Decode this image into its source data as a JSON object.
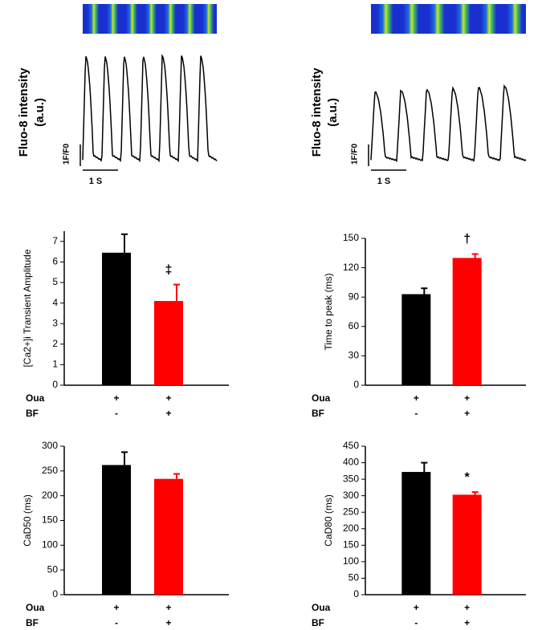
{
  "traces": [
    {
      "ylabel": [
        "Fluo-8 intensity",
        "(a.u.)"
      ],
      "scale_y": "1F/F0",
      "scale_x": "1 S"
    },
    {
      "ylabel": [
        "Fluo-8 intensity",
        "(a.u.)"
      ],
      "scale_y": "1F/F0",
      "scale_x": "1 S"
    }
  ],
  "chart_data": [
    {
      "type": "bar",
      "ylabel": "[Ca2+]i Transient Amplitude",
      "x_rows": [
        {
          "label": "Oua",
          "values": [
            "+",
            "+"
          ]
        },
        {
          "label": "BF",
          "values": [
            "-",
            "+"
          ]
        }
      ],
      "values": [
        6.45,
        4.1
      ],
      "errors": [
        0.9,
        0.8
      ],
      "colors": [
        "#000000",
        "#ff0000"
      ],
      "annotations": [
        null,
        "‡"
      ],
      "ylim": [
        0,
        7.5
      ],
      "yticks": [
        0,
        1,
        2,
        3,
        4,
        5,
        6,
        7
      ]
    },
    {
      "type": "bar",
      "ylabel": "Time to peak (ms)",
      "x_rows": [
        {
          "label": "Oua",
          "values": [
            "+",
            "+"
          ]
        },
        {
          "label": "BF",
          "values": [
            "-",
            "+"
          ]
        }
      ],
      "values": [
        93,
        130
      ],
      "errors": [
        6,
        4
      ],
      "colors": [
        "#000000",
        "#ff0000"
      ],
      "annotations": [
        null,
        "†"
      ],
      "ylim": [
        0,
        150
      ],
      "yticks": [
        0,
        30,
        60,
        90,
        120,
        150
      ]
    },
    {
      "type": "bar",
      "ylabel": "CaD50 (ms)",
      "x_rows": [
        {
          "label": "Oua",
          "values": [
            "+",
            "+"
          ]
        },
        {
          "label": "BF",
          "values": [
            "-",
            "+"
          ]
        }
      ],
      "values": [
        262,
        234
      ],
      "errors": [
        26,
        10
      ],
      "colors": [
        "#000000",
        "#ff0000"
      ],
      "annotations": [
        null,
        null
      ],
      "ylim": [
        0,
        300
      ],
      "yticks": [
        0,
        50,
        100,
        150,
        200,
        250,
        300
      ]
    },
    {
      "type": "bar",
      "ylabel": "CaD80 (ms)",
      "x_rows": [
        {
          "label": "Oua",
          "values": [
            "+",
            "+"
          ]
        },
        {
          "label": "BF",
          "values": [
            "-",
            "+"
          ]
        }
      ],
      "values": [
        372,
        303
      ],
      "errors": [
        28,
        8
      ],
      "colors": [
        "#000000",
        "#ff0000"
      ],
      "annotations": [
        null,
        "*"
      ],
      "ylim": [
        0,
        450
      ],
      "yticks": [
        0,
        50,
        100,
        150,
        200,
        250,
        300,
        350,
        400,
        450
      ]
    }
  ]
}
